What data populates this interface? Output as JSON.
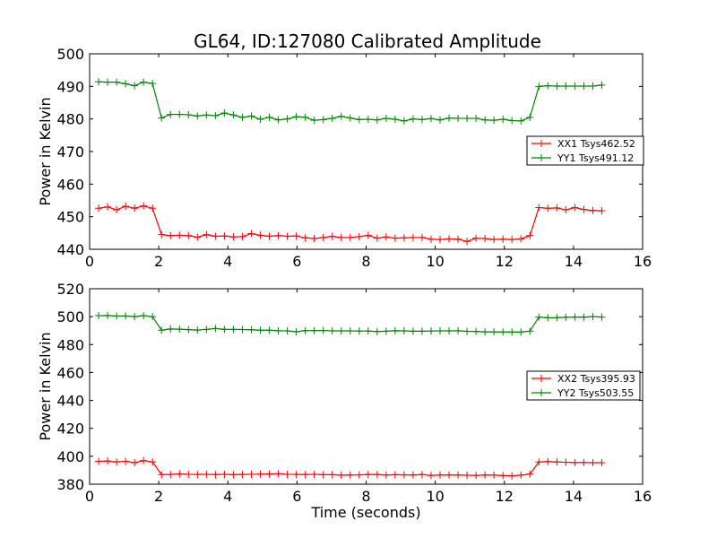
{
  "figure": {
    "title": "GL64, ID:127080 Calibrated Amplitude"
  },
  "chart_data": [
    {
      "type": "line",
      "xlabel": "",
      "ylabel": "Power in Kelvin",
      "xlim": [
        0,
        16
      ],
      "ylim": [
        440,
        500
      ],
      "xticks": [
        0,
        2,
        4,
        6,
        8,
        10,
        12,
        14,
        16
      ],
      "yticks": [
        440,
        450,
        460,
        470,
        480,
        490,
        500
      ],
      "grid": false,
      "legend_position": "center-right",
      "series": [
        {
          "name": "XX1 Tsys462.52",
          "color": "#ff0000",
          "marker": "plus",
          "x": [
            0.26,
            0.52,
            0.78,
            1.04,
            1.3,
            1.56,
            1.82,
            2.08,
            2.34,
            2.6,
            2.86,
            3.12,
            3.38,
            3.64,
            3.9,
            4.16,
            4.42,
            4.68,
            4.94,
            5.2,
            5.46,
            5.72,
            5.98,
            6.24,
            6.5,
            6.76,
            7.02,
            7.28,
            7.54,
            7.8,
            8.06,
            8.32,
            8.58,
            8.84,
            9.1,
            9.36,
            9.62,
            9.88,
            10.14,
            10.4,
            10.66,
            10.92,
            11.18,
            11.44,
            11.7,
            11.96,
            12.22,
            12.48,
            12.74,
            13.0,
            13.26,
            13.52,
            13.78,
            14.04,
            14.3,
            14.56,
            14.82
          ],
          "y": [
            452.6,
            453.0,
            452.1,
            453.2,
            452.6,
            453.3,
            452.6,
            444.5,
            444.2,
            444.3,
            444.2,
            443.7,
            444.5,
            444.0,
            444.1,
            443.8,
            443.9,
            444.8,
            444.3,
            444.0,
            444.2,
            444.0,
            444.1,
            443.5,
            443.3,
            443.6,
            444.0,
            443.6,
            443.6,
            443.9,
            444.3,
            443.4,
            443.8,
            443.4,
            443.5,
            443.6,
            443.6,
            443.1,
            443.0,
            443.2,
            443.1,
            442.4,
            443.4,
            443.3,
            443.0,
            443.1,
            443.0,
            443.2,
            444.2,
            452.8,
            452.6,
            452.7,
            452.1,
            452.8,
            452.2,
            451.9,
            451.8
          ]
        },
        {
          "name": "YY1 Tsys491.12",
          "color": "#008000",
          "marker": "plus",
          "x": [
            0.26,
            0.52,
            0.78,
            1.04,
            1.3,
            1.56,
            1.82,
            2.08,
            2.34,
            2.6,
            2.86,
            3.12,
            3.38,
            3.64,
            3.9,
            4.16,
            4.42,
            4.68,
            4.94,
            5.2,
            5.46,
            5.72,
            5.98,
            6.24,
            6.5,
            6.76,
            7.02,
            7.28,
            7.54,
            7.8,
            8.06,
            8.32,
            8.58,
            8.84,
            9.1,
            9.36,
            9.62,
            9.88,
            10.14,
            10.4,
            10.66,
            10.92,
            11.18,
            11.44,
            11.7,
            11.96,
            12.22,
            12.48,
            12.74,
            13.0,
            13.26,
            13.52,
            13.78,
            14.04,
            14.3,
            14.56,
            14.82
          ],
          "y": [
            491.4,
            491.3,
            491.3,
            490.8,
            490.2,
            491.3,
            490.9,
            480.3,
            481.4,
            481.4,
            481.3,
            480.9,
            481.2,
            481.0,
            481.8,
            481.2,
            480.5,
            480.9,
            479.9,
            480.5,
            479.7,
            480.0,
            480.7,
            480.5,
            479.6,
            479.8,
            480.2,
            480.8,
            480.3,
            479.8,
            479.9,
            479.7,
            480.2,
            479.9,
            479.4,
            480.0,
            479.8,
            480.1,
            479.7,
            480.3,
            480.2,
            480.2,
            480.2,
            479.7,
            479.6,
            479.9,
            479.5,
            479.4,
            480.5,
            490.0,
            490.2,
            490.1,
            490.1,
            490.1,
            490.1,
            490.1,
            490.4
          ]
        }
      ]
    },
    {
      "type": "line",
      "xlabel": "Time (seconds)",
      "ylabel": "Power in Kelvin",
      "xlim": [
        0,
        16
      ],
      "ylim": [
        380,
        520
      ],
      "xticks": [
        0,
        2,
        4,
        6,
        8,
        10,
        12,
        14,
        16
      ],
      "yticks": [
        380,
        400,
        420,
        440,
        460,
        480,
        500,
        520
      ],
      "grid": false,
      "legend_position": "center-right",
      "series": [
        {
          "name": "XX2 Tsys395.93",
          "color": "#ff0000",
          "marker": "plus",
          "x": [
            0.26,
            0.52,
            0.78,
            1.04,
            1.3,
            1.56,
            1.82,
            2.08,
            2.34,
            2.6,
            2.86,
            3.12,
            3.38,
            3.64,
            3.9,
            4.16,
            4.42,
            4.68,
            4.94,
            5.2,
            5.46,
            5.72,
            5.98,
            6.24,
            6.5,
            6.76,
            7.02,
            7.28,
            7.54,
            7.8,
            8.06,
            8.32,
            8.58,
            8.84,
            9.1,
            9.36,
            9.62,
            9.88,
            10.14,
            10.4,
            10.66,
            10.92,
            11.18,
            11.44,
            11.7,
            11.96,
            12.22,
            12.48,
            12.74,
            13.0,
            13.26,
            13.52,
            13.78,
            14.04,
            14.3,
            14.56,
            14.82
          ],
          "y": [
            396.4,
            396.6,
            395.9,
            396.4,
            395.4,
            396.9,
            396.0,
            386.9,
            387.0,
            387.4,
            387.1,
            387.0,
            387.1,
            386.9,
            387.1,
            386.8,
            387.0,
            387.1,
            387.2,
            387.3,
            387.5,
            387.1,
            387.0,
            386.9,
            387.1,
            386.8,
            386.8,
            386.5,
            386.6,
            386.7,
            387.0,
            386.9,
            386.6,
            386.8,
            386.7,
            386.6,
            386.9,
            386.3,
            386.6,
            386.6,
            386.6,
            386.4,
            386.3,
            386.6,
            386.5,
            386.2,
            386.0,
            386.5,
            387.2,
            395.9,
            396.2,
            395.9,
            395.7,
            395.5,
            395.6,
            395.4,
            395.4
          ]
        },
        {
          "name": "YY2 Tsys503.55",
          "color": "#008000",
          "marker": "plus",
          "x": [
            0.26,
            0.52,
            0.78,
            1.04,
            1.3,
            1.56,
            1.82,
            2.08,
            2.34,
            2.6,
            2.86,
            3.12,
            3.38,
            3.64,
            3.9,
            4.16,
            4.42,
            4.68,
            4.94,
            5.2,
            5.46,
            5.72,
            5.98,
            6.24,
            6.5,
            6.76,
            7.02,
            7.28,
            7.54,
            7.8,
            8.06,
            8.32,
            8.58,
            8.84,
            9.1,
            9.36,
            9.62,
            9.88,
            10.14,
            10.4,
            10.66,
            10.92,
            11.18,
            11.44,
            11.7,
            11.96,
            12.22,
            12.48,
            12.74,
            13.0,
            13.26,
            13.52,
            13.78,
            14.04,
            14.3,
            14.56,
            14.82
          ],
          "y": [
            500.7,
            500.8,
            500.4,
            500.5,
            500.0,
            500.7,
            500.0,
            490.3,
            491.2,
            491.0,
            490.7,
            490.4,
            490.9,
            491.5,
            490.9,
            490.9,
            490.8,
            490.6,
            490.3,
            490.3,
            489.9,
            489.8,
            489.2,
            490.0,
            490.0,
            490.1,
            489.8,
            489.8,
            489.8,
            489.7,
            489.7,
            489.3,
            489.6,
            489.9,
            489.8,
            489.6,
            489.6,
            489.7,
            489.8,
            489.8,
            489.9,
            489.5,
            489.4,
            489.1,
            489.1,
            489.0,
            489.0,
            489.0,
            489.6,
            499.7,
            499.2,
            499.3,
            499.6,
            499.7,
            499.6,
            500.1,
            499.7
          ]
        }
      ]
    }
  ]
}
